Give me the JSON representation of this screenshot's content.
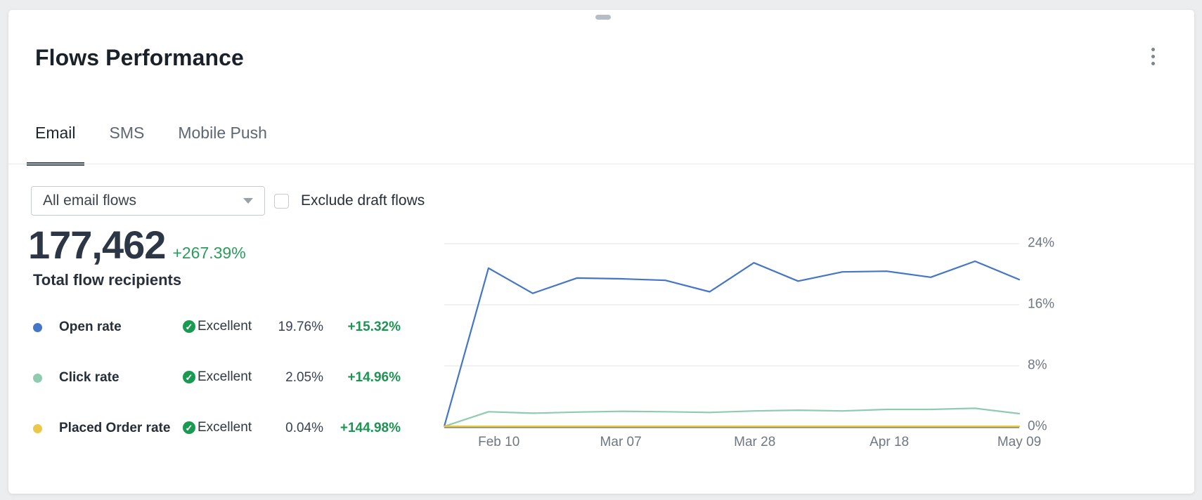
{
  "header": {
    "title": "Flows Performance"
  },
  "tabs": [
    {
      "label": "Email",
      "active": true
    },
    {
      "label": "SMS",
      "active": false
    },
    {
      "label": "Mobile Push",
      "active": false
    }
  ],
  "controls": {
    "flow_filter_value": "All email flows",
    "exclude_draft_label": "Exclude draft flows",
    "checkbox_checked": false
  },
  "summary": {
    "total_value": "177,462",
    "total_change": "+267.39%",
    "total_label": "Total flow recipients"
  },
  "metrics": [
    {
      "name": "Open rate",
      "status": "Excellent",
      "value": "19.76%",
      "change": "+15.32%",
      "color": "#4475c6"
    },
    {
      "name": "Click rate",
      "status": "Excellent",
      "value": "2.05%",
      "change": "+14.96%",
      "color": "#8fcbae"
    },
    {
      "name": "Placed Order rate",
      "status": "Excellent",
      "value": "0.04%",
      "change": "+144.98%",
      "color": "#e9c84a"
    }
  ],
  "colors": {
    "positive_green": "#1b9551",
    "delta_green": "#2b9c5c",
    "status_badge_green": "#189a51",
    "open_rate_blue": "#4475c6",
    "click_rate_green": "#8fcbae",
    "placed_order_yellow": "#e9c84a"
  },
  "chart_data": {
    "type": "line",
    "title": "",
    "xlabel": "",
    "ylabel": "",
    "ylim": [
      0,
      28
    ],
    "y_ticks": [
      0,
      8,
      16,
      24
    ],
    "y_tick_suffix": "%",
    "yaxis_position": "right",
    "grid": "horizontal",
    "legend": "none",
    "x_tick_labels": [
      "Feb 10",
      "Mar 07",
      "Mar 28",
      "Apr 18",
      "May 09"
    ],
    "x_tick_positions": [
      0.095,
      0.307,
      0.54,
      0.774,
      1.0
    ],
    "series": [
      {
        "name": "Open rate",
        "color": "#4475c6",
        "stroke_width": 2.2,
        "values": [
          0,
          20.8,
          17.5,
          19.5,
          19.4,
          19.2,
          17.7,
          21.5,
          19.1,
          20.3,
          20.4,
          19.6,
          21.7,
          19.3
        ]
      },
      {
        "name": "Click rate",
        "color": "#8fcbae",
        "stroke_width": 2.2,
        "values": [
          0,
          2.0,
          1.8,
          1.95,
          2.05,
          2.0,
          1.9,
          2.1,
          2.2,
          2.1,
          2.3,
          2.3,
          2.45,
          1.75
        ]
      },
      {
        "name": "Placed Order rate",
        "color": "#e9c84a",
        "stroke_width": 2.4,
        "values": [
          0,
          0.04,
          0.04,
          0.04,
          0.04,
          0.04,
          0.04,
          0.04,
          0.04,
          0.04,
          0.04,
          0.04,
          0.04,
          0.04
        ]
      }
    ]
  }
}
